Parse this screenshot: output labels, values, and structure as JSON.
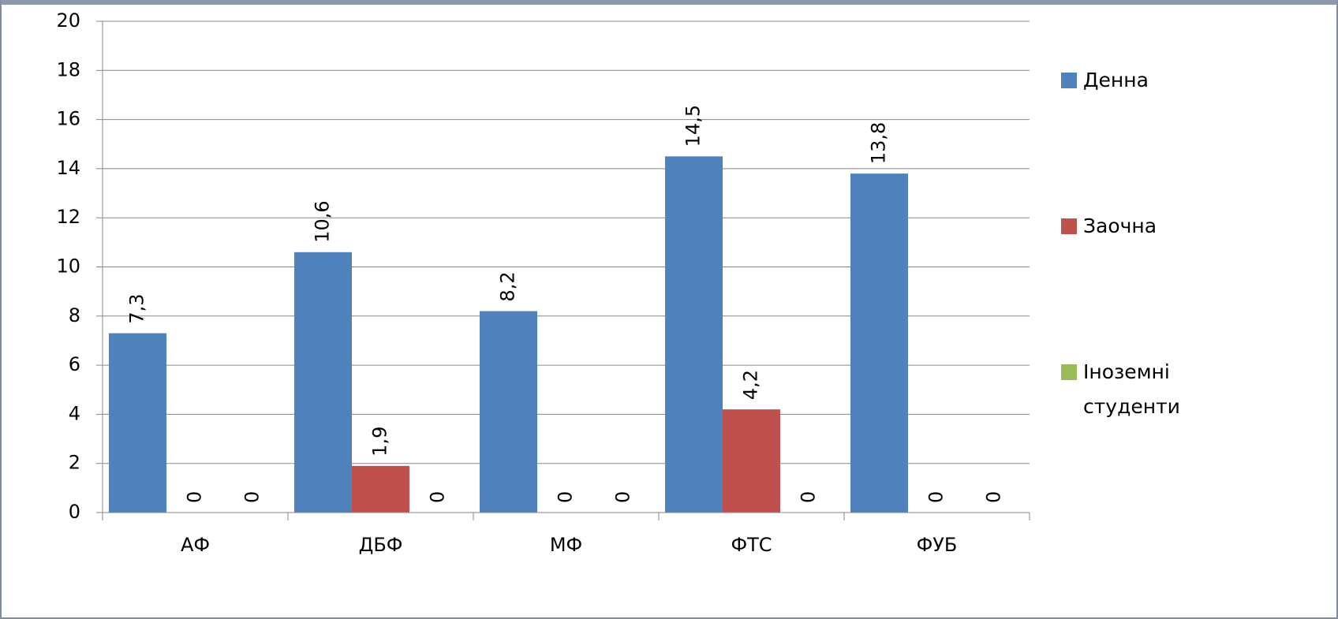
{
  "chart_data": {
    "type": "bar",
    "categories": [
      "АФ",
      "ДБФ",
      "МФ",
      "ФТС",
      "ФУБ"
    ],
    "series": [
      {
        "name": "Денна",
        "color": "#4f81bd",
        "values": [
          7.3,
          10.6,
          8.2,
          14.5,
          13.8
        ],
        "value_labels": [
          "7,3",
          "10,6",
          "8,2",
          "14,5",
          "13,8"
        ]
      },
      {
        "name": "Заочна",
        "color": "#c0504d",
        "values": [
          0,
          1.9,
          0,
          4.2,
          0
        ],
        "value_labels": [
          "0",
          "1,9",
          "0",
          "4,2",
          "0"
        ]
      },
      {
        "name": "Іноземні студенти",
        "color": "#9bbb59",
        "values": [
          0,
          0,
          0,
          0,
          0
        ]
      }
    ],
    "ylim": [
      0,
      20
    ],
    "yticks": [
      0,
      2,
      4,
      6,
      8,
      10,
      12,
      14,
      16,
      18,
      20
    ],
    "grid": true,
    "legend": "right"
  }
}
